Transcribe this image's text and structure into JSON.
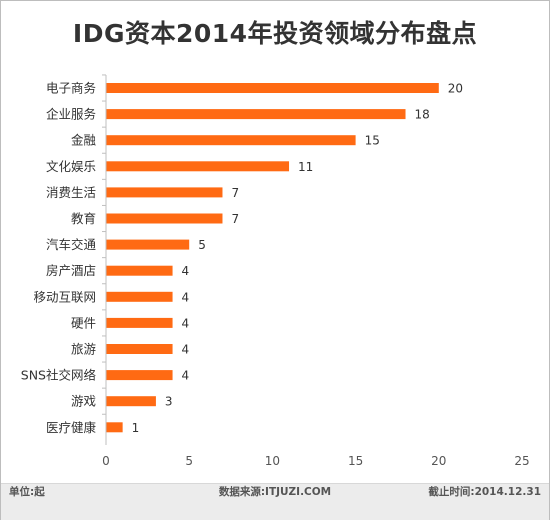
{
  "chart_data": {
    "type": "bar",
    "orientation": "horizontal",
    "title": "IDG资本2014年投资领域分布盘点",
    "categories": [
      "电子商务",
      "企业服务",
      "金融",
      "文化娱乐",
      "消费生活",
      "教育",
      "汽车交通",
      "房产酒店",
      "移动互联网",
      "硬件",
      "旅游",
      "SNS社交网络",
      "游戏",
      "医疗健康"
    ],
    "values": [
      20,
      18,
      15,
      11,
      7,
      7,
      5,
      4,
      4,
      4,
      4,
      4,
      3,
      1
    ],
    "xlim": [
      0,
      25
    ],
    "xticks": [
      0,
      5,
      10,
      15,
      20,
      25
    ],
    "xlabel": "",
    "ylabel": "",
    "bar_color": "#ff6a13",
    "grid": false,
    "legend": "none"
  },
  "footer": {
    "unit": "单位:起",
    "source": "数据来源:ITJUZI.COM",
    "date": "截止时间:2014.12.31"
  }
}
